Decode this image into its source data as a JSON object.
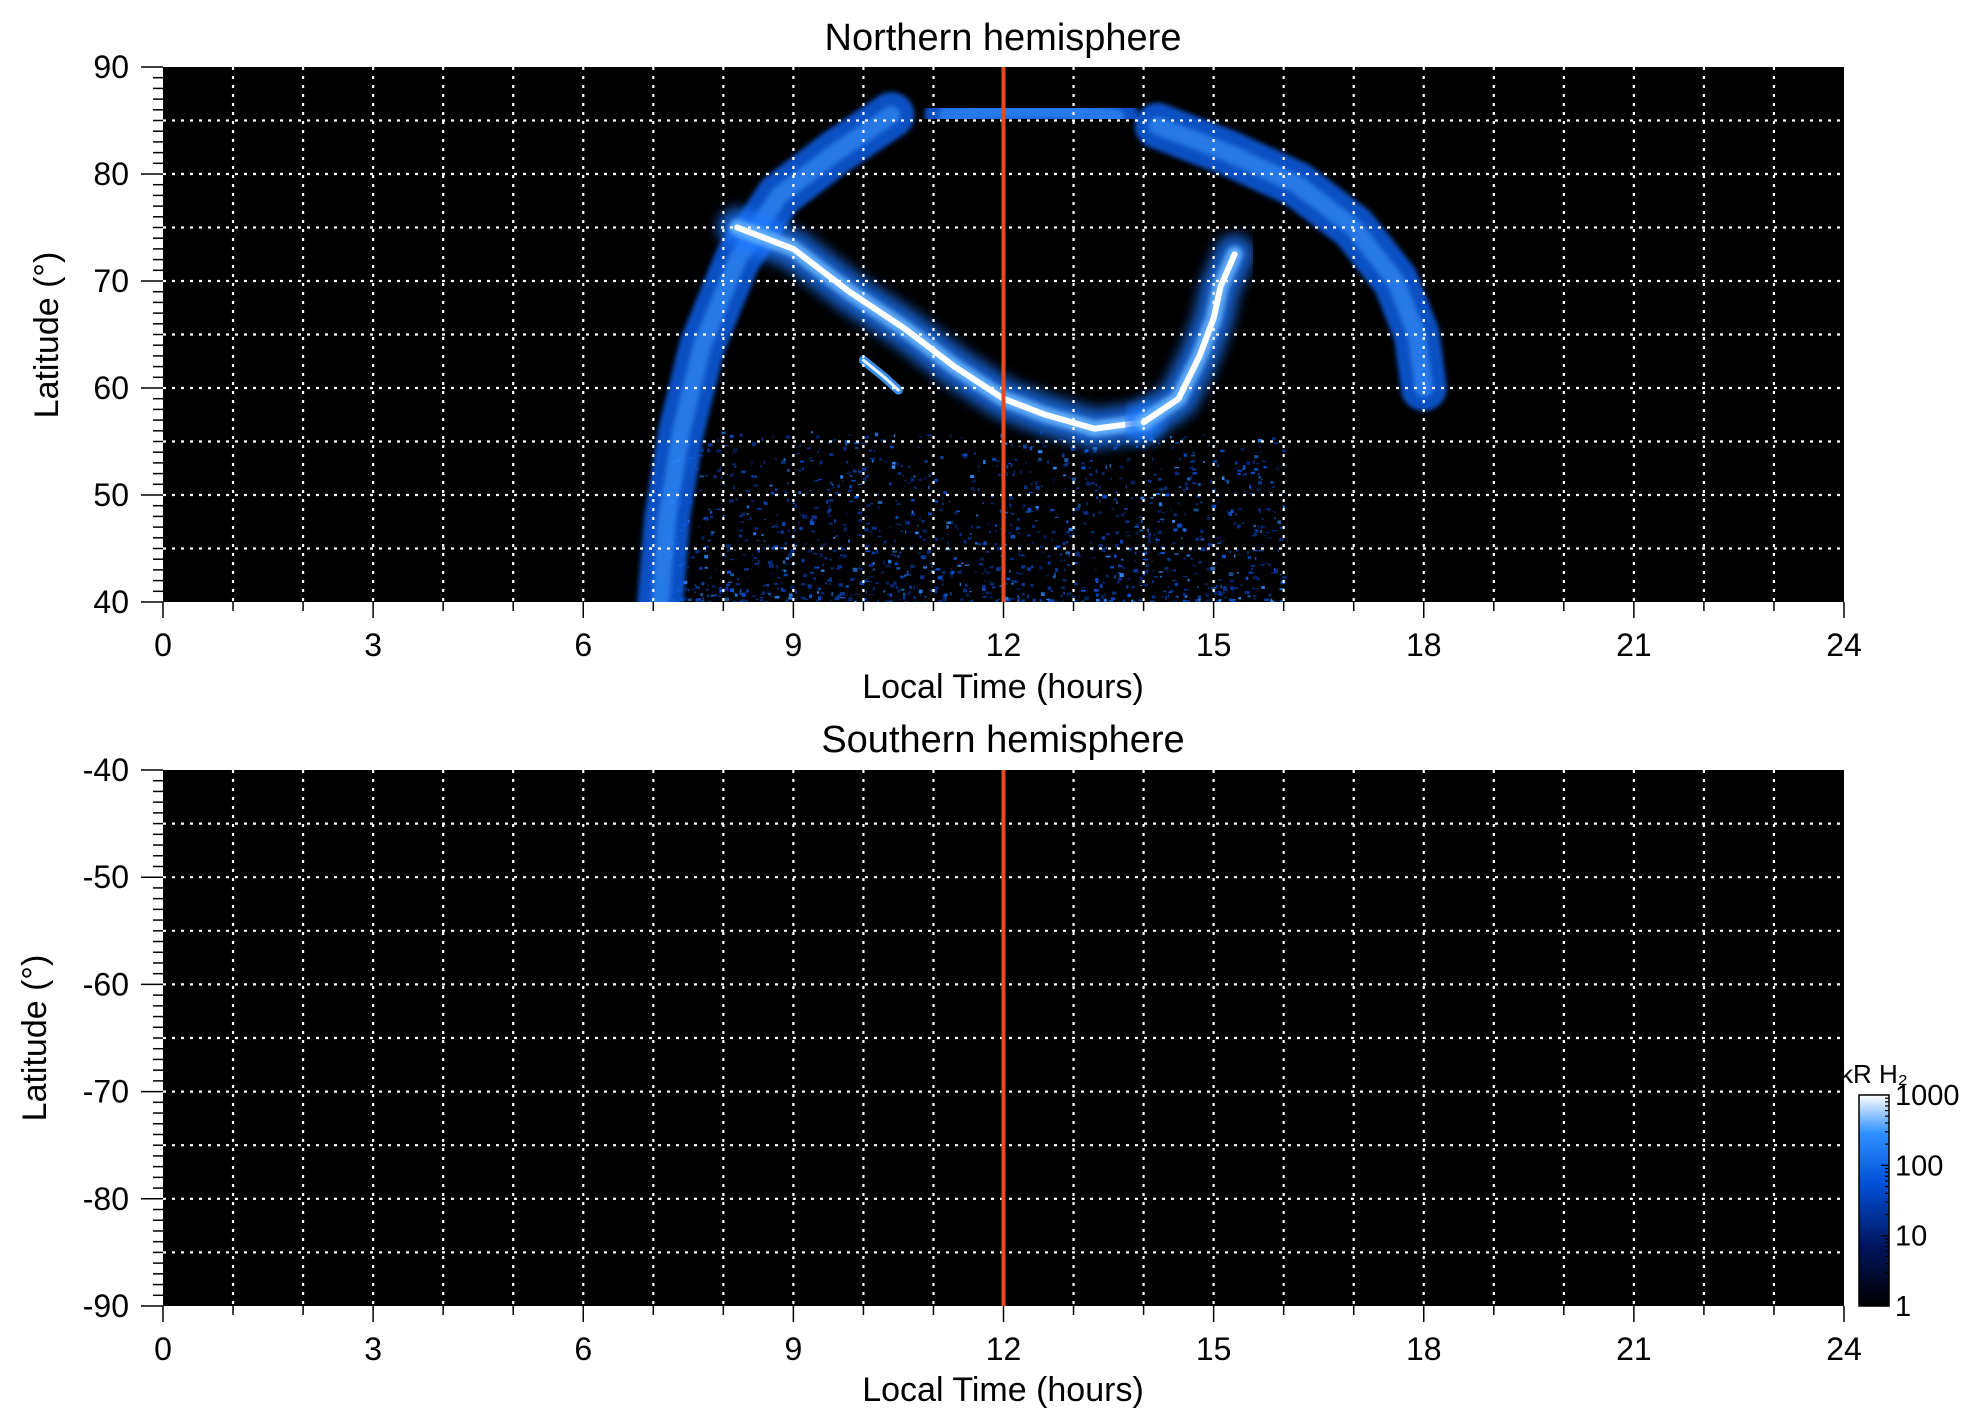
{
  "chart_data": [
    {
      "type": "heatmap",
      "title": "Northern hemisphere",
      "xlabel": "Local Time (hours)",
      "ylabel": "Latitude (°)",
      "xlim": [
        0,
        24
      ],
      "ylim": [
        40,
        90
      ],
      "xticks": [
        "0",
        "3",
        "6",
        "9",
        "12",
        "15",
        "18",
        "21",
        "24"
      ],
      "yticks": [
        "40",
        "50",
        "60",
        "70",
        "80",
        "90"
      ],
      "x_gridlines_every_hours": 1,
      "y_gridlines_every_degrees": 5,
      "grid": true,
      "background_color": "#000000",
      "grid_color": "#ffffff",
      "marker_line": {
        "x": 12,
        "color": "#e8491e"
      },
      "features": [
        {
          "name": "outer-band-dawn",
          "points": [
            [
              7.1,
              40
            ],
            [
              7.2,
              48
            ],
            [
              7.4,
              56
            ],
            [
              7.7,
              64
            ],
            [
              8.2,
              72
            ],
            [
              8.8,
              78
            ],
            [
              9.6,
              82
            ],
            [
              10.4,
              85.5
            ]
          ]
        },
        {
          "name": "outer-band-noon",
          "points": [
            [
              11.2,
              85.5
            ],
            [
              12,
              86
            ],
            [
              12.8,
              86
            ],
            [
              13.6,
              85.3
            ]
          ]
        },
        {
          "name": "outer-band-dusk",
          "points": [
            [
              14.2,
              84.5
            ],
            [
              15.2,
              82
            ],
            [
              16.2,
              79
            ],
            [
              17.0,
              75
            ],
            [
              17.6,
              70
            ],
            [
              17.9,
              65
            ],
            [
              18.0,
              60
            ]
          ]
        },
        {
          "name": "main-oval-dawn",
          "points": [
            [
              8.2,
              75
            ],
            [
              9.0,
              73
            ],
            [
              9.8,
              69
            ],
            [
              10.6,
              65.5
            ],
            [
              11.3,
              62
            ],
            [
              12.0,
              59
            ],
            [
              12.6,
              57.5
            ],
            [
              13.3,
              56.2
            ],
            [
              14.0,
              56.8
            ]
          ]
        },
        {
          "name": "main-oval-dusk",
          "points": [
            [
              14.0,
              56.8
            ],
            [
              14.5,
              59
            ],
            [
              14.8,
              63
            ],
            [
              15.0,
              66.5
            ],
            [
              15.1,
              69.5
            ],
            [
              15.3,
              72.5
            ]
          ]
        },
        {
          "name": "dawn-arc-fragment",
          "points": [
            [
              10.0,
              62.6
            ],
            [
              10.3,
              61
            ],
            [
              10.5,
              59.8
            ]
          ]
        }
      ]
    },
    {
      "type": "heatmap",
      "title": "Southern hemisphere",
      "xlabel": "Local Time (hours)",
      "ylabel": "Latitude (°)",
      "xlim": [
        0,
        24
      ],
      "ylim": [
        -90,
        -40
      ],
      "xticks": [
        "0",
        "3",
        "6",
        "9",
        "12",
        "15",
        "18",
        "21",
        "24"
      ],
      "yticks": [
        "-40",
        "-50",
        "-60",
        "-70",
        "-80",
        "-90"
      ],
      "x_gridlines_every_hours": 1,
      "y_gridlines_every_degrees": 5,
      "grid": true,
      "background_color": "#000000",
      "grid_color": "#ffffff",
      "marker_line": {
        "x": 12,
        "color": "#e8491e"
      },
      "features": []
    }
  ],
  "colorbar": {
    "label": "kR H₂",
    "scale": "log",
    "range": [
      1,
      1000
    ],
    "ticks": [
      "1",
      "10",
      "100",
      "1000"
    ],
    "colors": [
      "#000000",
      "#00145c",
      "#0050d8",
      "#2f90ff",
      "#ffffff"
    ]
  }
}
